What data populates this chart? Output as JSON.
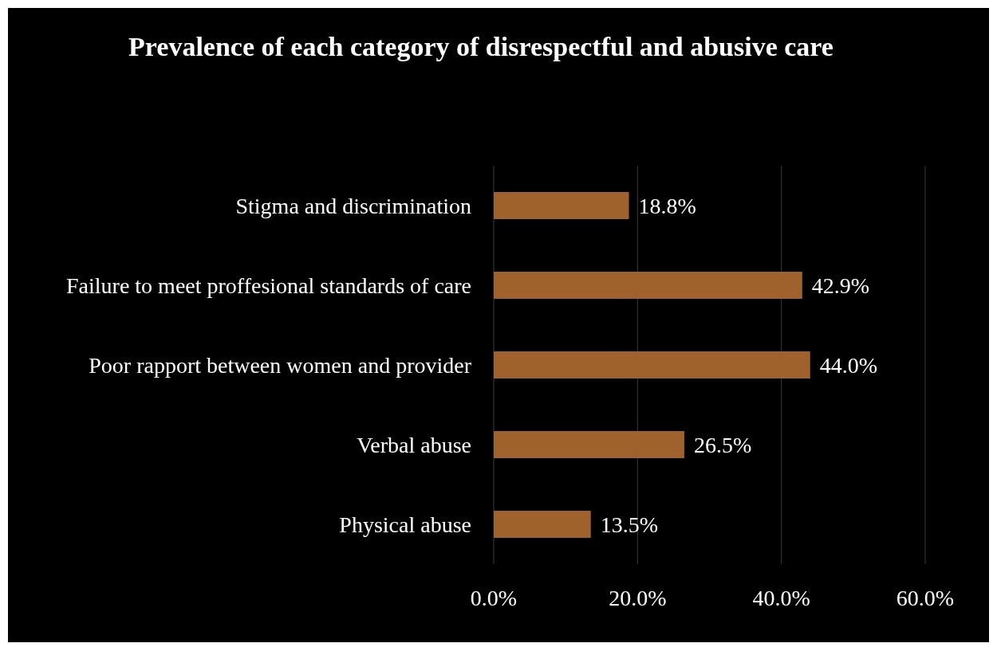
{
  "chart_data": {
    "type": "bar",
    "orientation": "horizontal",
    "title": "Prevalence of each category of disrespectful and abusive care",
    "categories": [
      "Stigma and discrimination",
      "Failure to meet proffesional standards of care",
      "Poor rapport between women and provider",
      "Verbal abuse",
      "Physical abuse"
    ],
    "values": [
      18.8,
      42.9,
      44.0,
      26.5,
      13.5
    ],
    "value_labels": [
      "18.8%",
      "42.9%",
      "44.0%",
      "26.5%",
      "13.5%"
    ],
    "color": "#a0622d",
    "xlim": [
      0,
      60
    ],
    "xticks": [
      {
        "value": 0,
        "label": "0.0%"
      },
      {
        "value": 20,
        "label": "20.0%"
      },
      {
        "value": 40,
        "label": "40.0%"
      },
      {
        "value": 60,
        "label": "60.0%"
      }
    ],
    "grid": "x"
  }
}
